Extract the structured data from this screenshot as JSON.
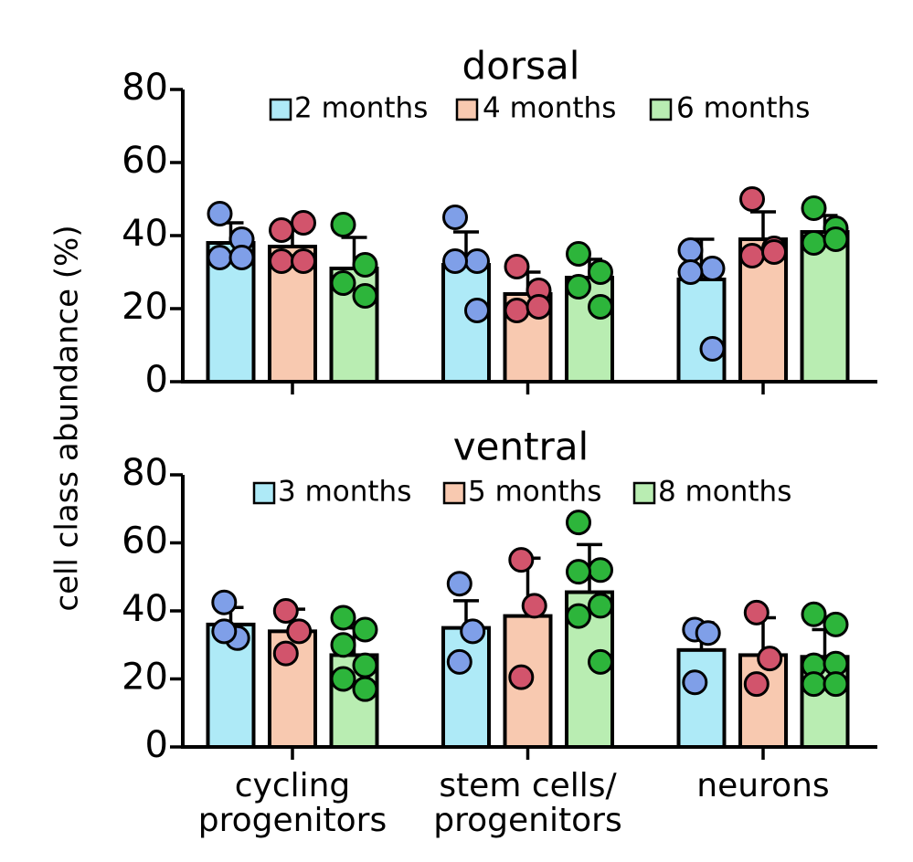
{
  "chart_data": [
    {
      "type": "bar",
      "title": "dorsal",
      "ylabel": "cell class abundance (%)",
      "categories": [
        null,
        null,
        null
      ],
      "ylim": [
        0,
        80
      ],
      "yticks": [
        0,
        20,
        40,
        60,
        80
      ],
      "series": [
        {
          "name": "2 months",
          "color": "#aeeaf7",
          "dot_color": "#7f9fe8",
          "values": [
            38,
            32,
            28
          ],
          "errors": [
            5.5,
            9,
            11
          ],
          "points": [
            [
              46,
              39,
              34,
              34
            ],
            [
              45,
              33,
              33,
              19.5
            ],
            [
              36,
              31,
              30,
              9
            ]
          ]
        },
        {
          "name": "4 months",
          "color": "#f8c9b0",
          "dot_color": "#d2546c",
          "values": [
            37,
            24,
            39
          ],
          "errors": [
            5,
            6,
            7.5
          ],
          "points": [
            [
              41.5,
              43.5,
              33,
              33
            ],
            [
              31.5,
              25,
              19.5,
              20.5
            ],
            [
              50,
              36.5,
              34.5,
              35.5
            ]
          ]
        },
        {
          "name": "6 months",
          "color": "#b9edb2",
          "dot_color": "#2db53b",
          "values": [
            31,
            28.5,
            41
          ],
          "errors": [
            8.5,
            5,
            4.5
          ],
          "points": [
            [
              43,
              32,
              27,
              23.5
            ],
            [
              35,
              30,
              26,
              20.5
            ],
            [
              47.5,
              42,
              38,
              39
            ]
          ]
        }
      ]
    },
    {
      "type": "bar",
      "title": "ventral",
      "categories": [
        "cycling\nprogenitors",
        "stem cells/\nprogenitors",
        "neurons"
      ],
      "ylim": [
        0,
        80
      ],
      "yticks": [
        0,
        20,
        40,
        60,
        80
      ],
      "series": [
        {
          "name": "3 months",
          "color": "#aeeaf7",
          "dot_color": "#7f9fe8",
          "values": [
            36,
            35,
            28.5
          ],
          "errors": [
            5,
            8,
            8
          ],
          "points": [
            [
              42.5,
              32,
              34
            ],
            [
              48,
              34,
              25
            ],
            [
              34.5,
              33.5,
              19
            ]
          ]
        },
        {
          "name": "5 months",
          "color": "#f8c9b0",
          "dot_color": "#d2546c",
          "values": [
            34,
            38.5,
            27
          ],
          "errors": [
            6.5,
            17,
            11
          ],
          "points": [
            [
              40,
              34,
              27.5
            ],
            [
              55,
              41.5,
              20.5
            ],
            [
              39.5,
              26,
              18.5
            ]
          ]
        },
        {
          "name": "8 months",
          "color": "#b9edb2",
          "dot_color": "#2db53b",
          "values": [
            27,
            45.5,
            26.5
          ],
          "errors": [
            8,
            14,
            8
          ],
          "points": [
            [
              38,
              34.5,
              30,
              24,
              20,
              17
            ],
            [
              66,
              52,
              51.5,
              41.5,
              38.5,
              25
            ],
            [
              39,
              36,
              24,
              24.5,
              18.5,
              18.5
            ]
          ]
        }
      ]
    }
  ]
}
